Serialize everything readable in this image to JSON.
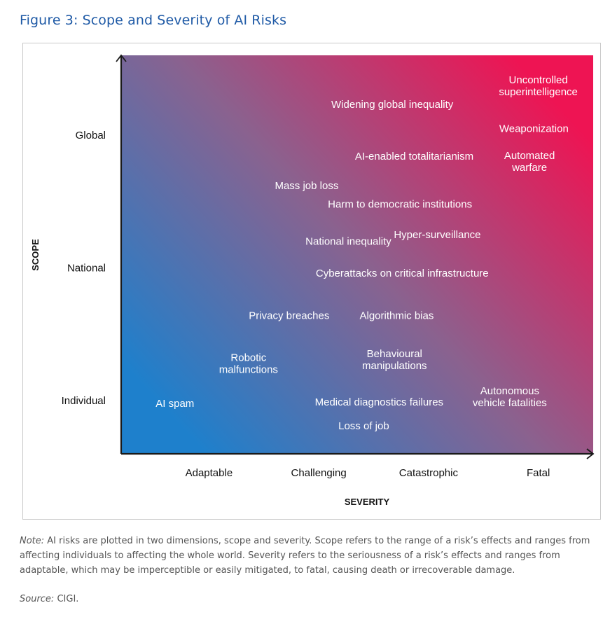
{
  "figure": {
    "title": "Figure 3: Scope and Severity of AI Risks",
    "note_label": "Note:",
    "note_text": " AI risks are plotted in two dimensions, scope and severity. Scope refers to the range of a risk’s effects and ranges from affecting individuals to affecting the whole world. Severity refers to the seriousness of a risk’s effects and ranges from adaptable, which may be imperceptible or easily mitigated, to fatal, causing death or irrecoverable damage.",
    "source_label": "Source:",
    "source_text": " CIGI."
  },
  "colors": {
    "low": "#1e80cc",
    "mid": "#8a628f",
    "high": "#ee1453",
    "label_text": "#ffffff",
    "axis": "#1a1a1a"
  },
  "chart_data": {
    "type": "scatter",
    "xlabel": "SEVERITY",
    "ylabel": "SCOPE",
    "x_categories": [
      "Adaptable",
      "Challenging",
      "Catastrophic",
      "Fatal"
    ],
    "y_categories": [
      "Individual",
      "National",
      "Global"
    ],
    "xlim": [
      0.2,
      4.5
    ],
    "ylim": [
      0.6,
      3.6
    ],
    "grid": false,
    "legend": "none",
    "points": [
      {
        "label": [
          "Uncontrolled",
          "superintelligence"
        ],
        "x": 4.0,
        "y": 3.37
      },
      {
        "label": [
          "Widening global inequality"
        ],
        "x": 2.67,
        "y": 3.23
      },
      {
        "label": [
          "Weaponization"
        ],
        "x": 3.96,
        "y": 3.05
      },
      {
        "label": [
          "AI-enabled totalitarianism"
        ],
        "x": 2.87,
        "y": 2.84
      },
      {
        "label": [
          "Automated",
          "warfare"
        ],
        "x": 3.92,
        "y": 2.8
      },
      {
        "label": [
          "Mass job loss"
        ],
        "x": 1.89,
        "y": 2.62
      },
      {
        "label": [
          "Harm to democratic institutions"
        ],
        "x": 2.74,
        "y": 2.48
      },
      {
        "label": [
          "Hyper-surveillance"
        ],
        "x": 3.08,
        "y": 2.25
      },
      {
        "label": [
          "National inequality"
        ],
        "x": 2.27,
        "y": 2.2
      },
      {
        "label": [
          "Cyberattacks on critical infrastructure"
        ],
        "x": 2.76,
        "y": 1.96
      },
      {
        "label": [
          "Privacy breaches"
        ],
        "x": 1.73,
        "y": 1.64
      },
      {
        "label": [
          "Algorithmic bias"
        ],
        "x": 2.71,
        "y": 1.64
      },
      {
        "label": [
          "Behavioural",
          "manipulations"
        ],
        "x": 2.69,
        "y": 1.31
      },
      {
        "label": [
          "Robotic",
          "malfunctions"
        ],
        "x": 1.36,
        "y": 1.28
      },
      {
        "label": [
          "Autonomous",
          "vehicle fatalities"
        ],
        "x": 3.74,
        "y": 1.03
      },
      {
        "label": [
          "Medical diagnostics failures"
        ],
        "x": 2.55,
        "y": 0.99
      },
      {
        "label": [
          "AI spam"
        ],
        "x": 0.69,
        "y": 0.98
      },
      {
        "label": [
          "Loss of job"
        ],
        "x": 2.41,
        "y": 0.81
      }
    ]
  }
}
